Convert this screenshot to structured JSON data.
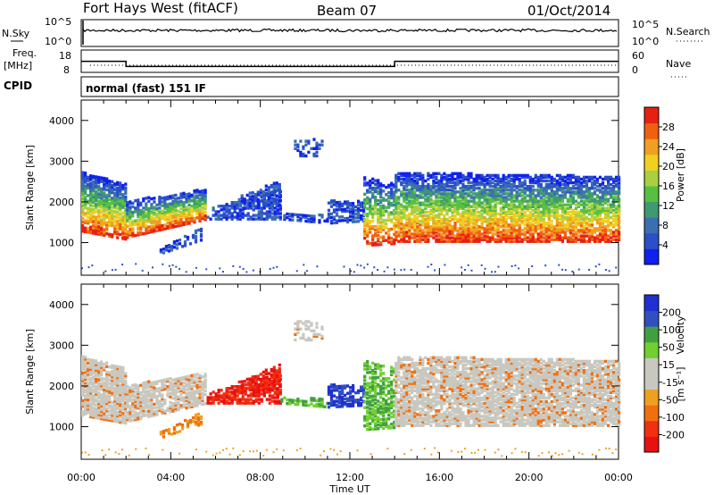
{
  "header": {
    "station": "Fort Hays West (fitACF)",
    "beam": "Beam 07",
    "date": "01/Oct/2014"
  },
  "top_panels": {
    "nsky_label": "N.Sky",
    "nsky_ticks": [
      "10^5",
      "10^0"
    ],
    "nsearch_label": "N.Search",
    "nsearch_ticks": [
      "10^5",
      "10^0"
    ],
    "freq_label": "Freq.",
    "freq_unit": "[MHz]",
    "freq_ticks": [
      "18",
      "8"
    ],
    "nave_label": "Nave",
    "nave_ticks": [
      "60",
      "0"
    ],
    "cpid_label": "CPID",
    "cpid_value": "normal (fast) 151 IF",
    "freq_steps": [
      {
        "from": 0,
        "to": 2.0,
        "mhz": 14.5
      },
      {
        "from": 2.0,
        "to": 14.0,
        "mhz": 11.5
      },
      {
        "from": 14.0,
        "to": 24.0,
        "mhz": 14.5
      }
    ]
  },
  "colors": {
    "power_scale": [
      "#1020ee",
      "#2a4fc8",
      "#3a6fb0",
      "#3f9a70",
      "#58c040",
      "#a8d040",
      "#f0d020",
      "#f0a020",
      "#f06010",
      "#e82010"
    ],
    "velocity_scale": [
      "#e81010",
      "#f03010",
      "#f07010",
      "#f0a020",
      "#c8c8c0",
      "#c8c8c0",
      "#70d030",
      "#40a040",
      "#3050c0",
      "#2030d0"
    ]
  },
  "chart_data": [
    {
      "type": "heatmap",
      "name": "power",
      "x_range": [
        0,
        24
      ],
      "xlabel": "Time UT",
      "x_ticks": [
        "00:00",
        "04:00",
        "08:00",
        "12:00",
        "16:00",
        "20:00",
        "00:00"
      ],
      "ylabel": "Slant Range [km]",
      "y_ticks": [
        "1000",
        "2000",
        "3000",
        "4000"
      ],
      "ylim": [
        200,
        4500
      ],
      "colorbar_label": "Power [dB]",
      "colorbar_ticks": [
        "28",
        "24",
        "20",
        "16",
        "12",
        "8",
        "4"
      ]
    },
    {
      "type": "heatmap",
      "name": "velocity",
      "x_range": [
        0,
        24
      ],
      "xlabel": "Time UT",
      "x_ticks": [
        "00:00",
        "04:00",
        "08:00",
        "12:00",
        "16:00",
        "20:00",
        "00:00"
      ],
      "ylabel": "Slant Range [km]",
      "y_ticks": [
        "1000",
        "2000",
        "3000",
        "4000"
      ],
      "ylim": [
        200,
        4500
      ],
      "colorbar_label": "Velocity",
      "colorbar_unit": "[m s⁻¹]",
      "colorbar_ticks": [
        "200",
        "100",
        "50",
        "15",
        "-15",
        "-50",
        "-100",
        "-200"
      ]
    }
  ]
}
